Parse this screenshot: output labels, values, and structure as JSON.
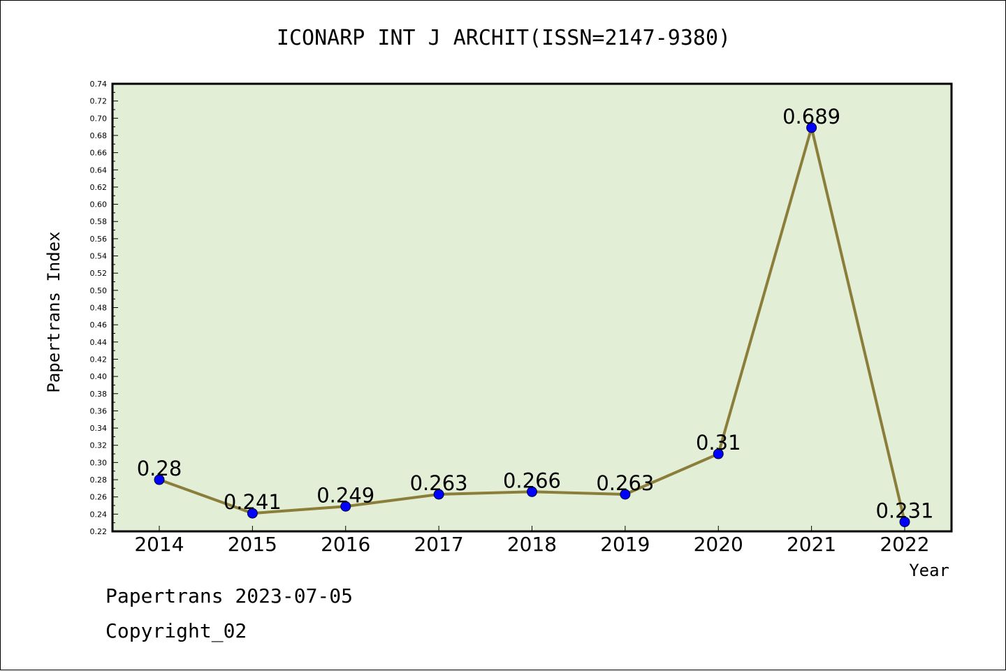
{
  "chart_data": {
    "type": "line",
    "title": "ICONARP INT J ARCHIT(ISSN=2147-9380)",
    "xlabel": "Year",
    "ylabel": "Papertrans Index",
    "categories": [
      "2014",
      "2015",
      "2016",
      "2017",
      "2018",
      "2019",
      "2020",
      "2021",
      "2022"
    ],
    "series": [
      {
        "values": [
          0.28,
          0.241,
          0.249,
          0.263,
          0.266,
          0.263,
          0.31,
          0.689,
          0.231
        ],
        "labels": [
          "0.28",
          "0.241",
          "0.249",
          "0.263",
          "0.266",
          "0.263",
          "0.31",
          "0.689",
          "0.231"
        ]
      }
    ],
    "ylim": [
      0.22,
      0.74
    ],
    "yticks": [
      "0.22",
      "0.24",
      "0.26",
      "0.28",
      "0.30",
      "0.32",
      "0.34",
      "0.36",
      "0.38",
      "0.40",
      "0.42",
      "0.44",
      "0.46",
      "0.48",
      "0.50",
      "0.52",
      "0.54",
      "0.56",
      "0.58",
      "0.60",
      "0.62",
      "0.64",
      "0.66",
      "0.68",
      "0.70",
      "0.72",
      "0.74"
    ],
    "grid": false,
    "colors": {
      "plot_background": "#e2efd6",
      "line": "#8b7d3a",
      "marker": "#0000ff"
    }
  },
  "footer": {
    "line1": "Papertrans 2023-07-05",
    "line2": "Copyright_02"
  }
}
